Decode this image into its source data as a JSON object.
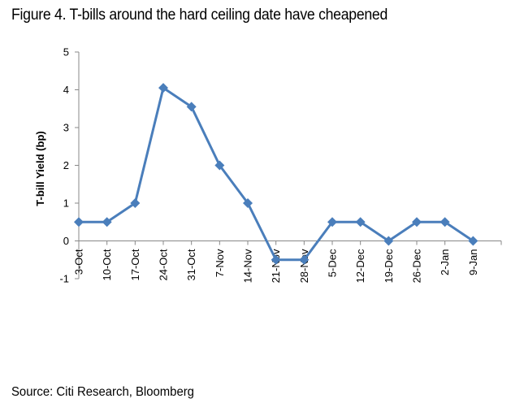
{
  "title": "Figure 4. T-bills around the hard ceiling date have cheapened",
  "source": "Source: Citi Research, Bloomberg",
  "chart_data": {
    "type": "line",
    "categories": [
      "3-Oct",
      "10-Oct",
      "17-Oct",
      "24-Oct",
      "31-Oct",
      "7-Nov",
      "14-Nov",
      "21-Nov",
      "28-Nov",
      "5-Dec",
      "12-Dec",
      "19-Dec",
      "26-Dec",
      "2-Jan",
      "9-Jan"
    ],
    "series": [
      {
        "values": [
          0.5,
          0.5,
          1.0,
          4.05,
          3.55,
          2.0,
          1.0,
          -0.5,
          -0.5,
          0.5,
          0.5,
          0.0,
          0.5,
          0.5,
          0.0
        ],
        "color": "#4a7ebb"
      }
    ],
    "ylabel": "T-bill Yield (bp)",
    "ylim": [
      -1,
      5
    ],
    "yticks": [
      -1,
      0,
      1,
      2,
      3,
      4,
      5
    ],
    "grid": false,
    "marker": "diamond"
  }
}
